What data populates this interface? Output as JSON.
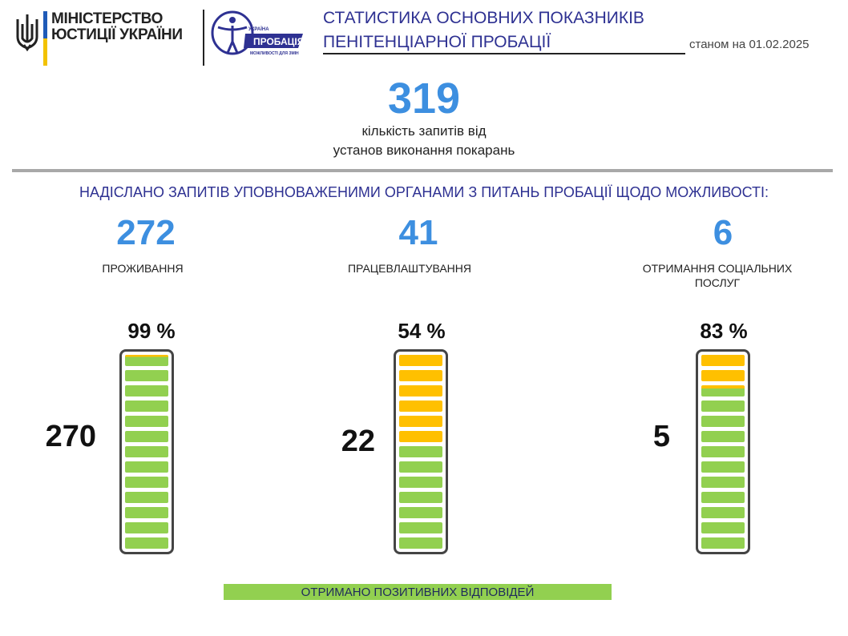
{
  "header": {
    "ministry_line1": "МІНІСТЕРСТВО",
    "ministry_line2": "ЮСТИЦІЇ УКРАЇНИ",
    "probation_logo_top": "УКРАЇНА",
    "probation_logo_main": "ПРОБАЦІЯ",
    "probation_logo_sub": "МОЖЛИВОСТІ ДЛЯ ЗМІН",
    "title_line1": "СТАТИСТИКА ОСНОВНИХ ПОКАЗНИКІВ",
    "title_line2": "ПЕНІТЕНЦІАРНОЇ ПРОБАЦІЇ",
    "date": "станом на 01.02.2025"
  },
  "summary": {
    "total": "319",
    "total_desc_line1": "кількість запитів від",
    "total_desc_line2": "установ виконання покарань"
  },
  "subheading": "НАДІСЛАНО ЗАПИТІВ УПОВНОВАЖЕНИМИ ОРГАНАМИ З ПИТАНЬ ПРОБАЦІЇ  ЩОДО МОЖЛИВОСТІ:",
  "colors": {
    "accent_blue": "#3d8fe0",
    "title_navy": "#2e3192",
    "positive_green": "#92d050",
    "remaining_yellow": "#ffc000"
  },
  "chart_data": {
    "type": "bar",
    "categories": [
      "ПРОЖИВАННЯ",
      "ПРАЦЕВЛАШТУВАННЯ",
      "ОТРИМАННЯ  СОЦІАЛЬНИХ ПОСЛУГ"
    ],
    "totals": [
      272,
      41,
      6
    ],
    "series": [
      {
        "name": "ОТРИМАНО  ПОЗИТИВНИХ ВІДПОВІДЕЙ",
        "values": [
          270,
          22,
          5
        ]
      }
    ],
    "percent_labels": [
      "99 %",
      "54 %",
      "83 %"
    ],
    "percent_values": [
      99,
      54,
      83
    ]
  },
  "categories_view": [
    {
      "total": "272",
      "label": "ПРОЖИВАННЯ",
      "pct": "99 %",
      "positive": "270"
    },
    {
      "total": "41",
      "label": "ПРАЦЕВЛАШТУВАННЯ",
      "pct": "54 %",
      "positive": "22"
    },
    {
      "total": "6",
      "label": "ОТРИМАННЯ  СОЦІАЛЬНИХ ПОСЛУГ",
      "pct": "83 %",
      "positive": "5"
    }
  ],
  "legend": {
    "label": "ОТРИМАНО  ПОЗИТИВНИХ ВІДПОВІДЕЙ"
  }
}
